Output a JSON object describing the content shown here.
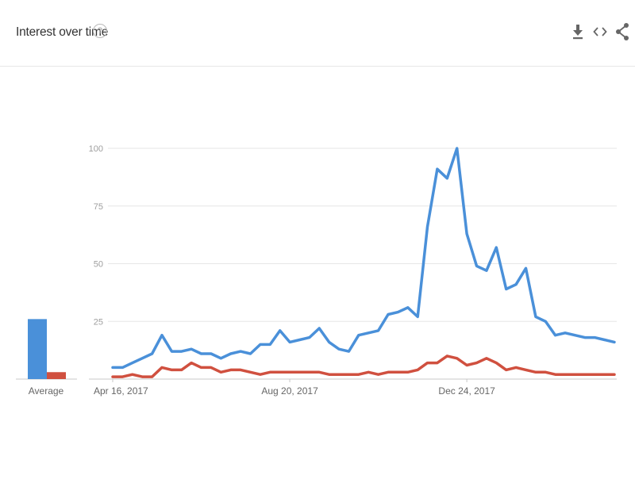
{
  "header": {
    "title": "Interest over time",
    "help_icon": "question-mark-icon",
    "icons": [
      "download-icon",
      "embed-code-icon",
      "share-icon"
    ]
  },
  "colors": {
    "series_1": "#4a90d9",
    "series_2": "#d0503f",
    "grid": "#e6e6e6",
    "axis": "#c8c8c8"
  },
  "average_label": "Average",
  "chart_data": {
    "type": "line",
    "title": "Interest over time",
    "ylim": [
      0,
      100
    ],
    "y_ticks": [
      25,
      50,
      75,
      100
    ],
    "y_tick_labels": [
      "25",
      "50",
      "75",
      "100"
    ],
    "grid": true,
    "x_tick_labels": [
      "Apr 16, 2017",
      "Aug 20, 2017",
      "Dec 24, 2017"
    ],
    "x_tick_indices": [
      0,
      18,
      36
    ],
    "series": [
      {
        "values": [
          5,
          5,
          7,
          9,
          11,
          19,
          12,
          12,
          13,
          11,
          11,
          9,
          11,
          12,
          11,
          15,
          15,
          21,
          16,
          17,
          18,
          22,
          16,
          13,
          12,
          19,
          20,
          21,
          28,
          29,
          31,
          27,
          66,
          91,
          87,
          100,
          63,
          49,
          47,
          57,
          39,
          41,
          48,
          27,
          25,
          19,
          20,
          19,
          18,
          18,
          17,
          16
        ],
        "average": 26
      },
      {
        "values": [
          1,
          1,
          2,
          1,
          1,
          5,
          4,
          4,
          7,
          5,
          5,
          3,
          4,
          4,
          3,
          2,
          3,
          3,
          3,
          3,
          3,
          3,
          2,
          2,
          2,
          2,
          3,
          2,
          3,
          3,
          3,
          4,
          7,
          7,
          10,
          9,
          6,
          7,
          9,
          7,
          4,
          5,
          4,
          3,
          3,
          2,
          2,
          2,
          2,
          2,
          2,
          2
        ],
        "average": 3
      }
    ]
  }
}
